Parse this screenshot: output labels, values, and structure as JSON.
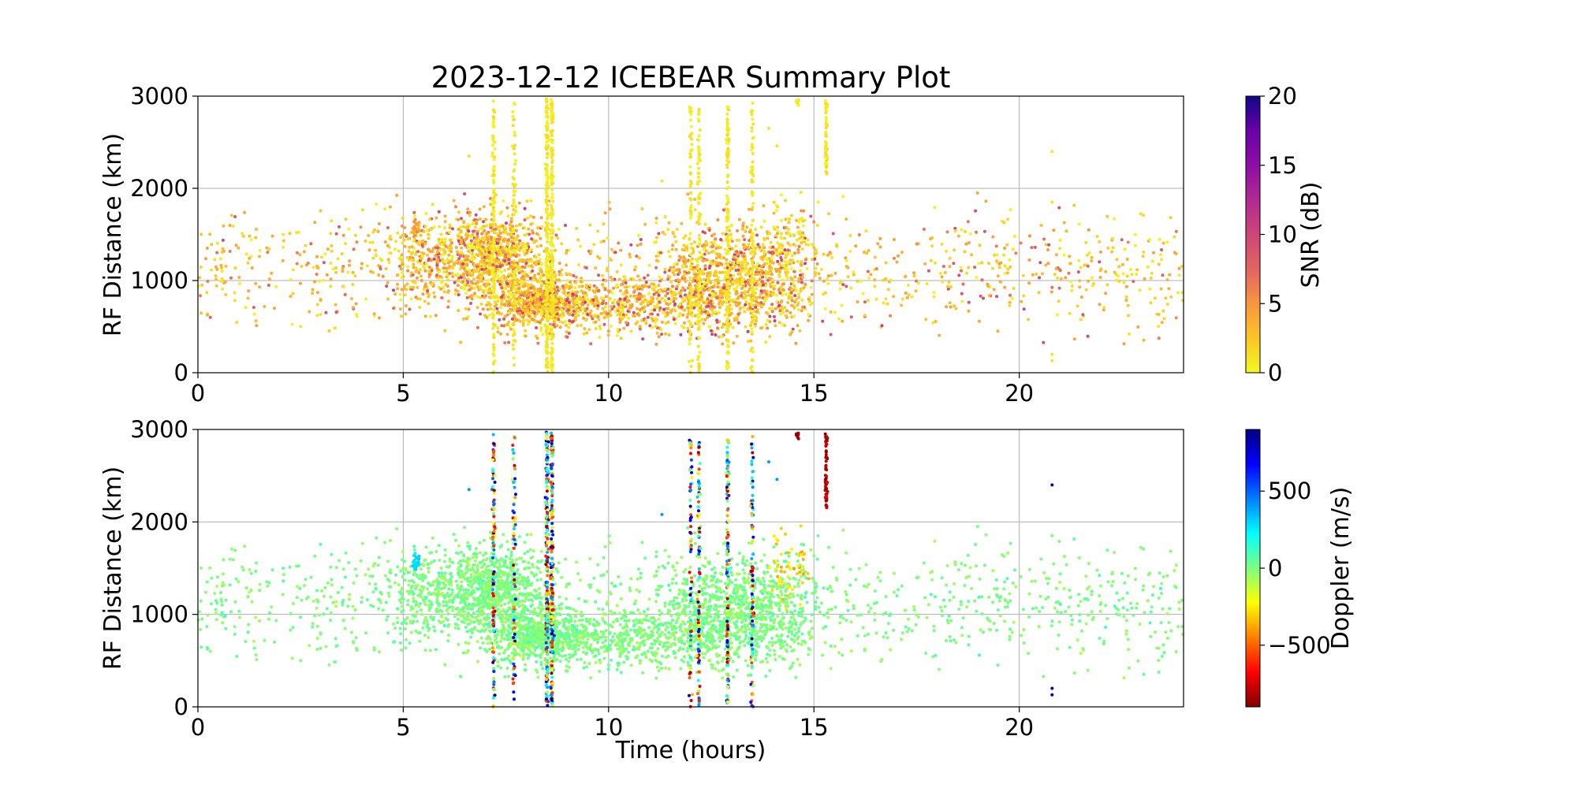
{
  "figure": {
    "title": "2023-12-12 ICEBEAR Summary Plot"
  },
  "chart_data": [
    {
      "type": "scatter",
      "name": "snr-panel",
      "xlabel": "",
      "ylabel": "RF Distance (km)",
      "xlim": [
        0,
        24
      ],
      "ylim": [
        0,
        3000
      ],
      "xticks": [
        "0",
        "5",
        "10",
        "15",
        "20"
      ],
      "yticks": [
        "0",
        "1000",
        "2000",
        "3000"
      ],
      "grid": true,
      "color_variable": "SNR",
      "colorbar": {
        "label": "SNR (dB)",
        "colormap": "plasma_r",
        "range": [
          0,
          20
        ],
        "ticks": [
          "0",
          "5",
          "10",
          "15",
          "20"
        ]
      },
      "cluster_summary": {
        "diffuse_background": {
          "x_range": [
            0,
            24
          ],
          "y_range": [
            300,
            1950
          ],
          "snr_typical": [
            0,
            6
          ]
        },
        "dense_regions": [
          {
            "x_center": 7.3,
            "y_center": 1250,
            "note": "dense cluster"
          },
          {
            "x_center": 8.3,
            "y_center": 800,
            "note": "dense cluster"
          },
          {
            "x_center": 12.8,
            "y_center": 1000,
            "note": "dense cluster"
          }
        ],
        "vertical_streaks_hours": [
          7.2,
          7.7,
          8.5,
          8.6,
          12.0,
          12.2,
          12.9,
          13.5,
          14.6,
          15.3
        ],
        "isolated_points": [
          {
            "x": 20.8,
            "y": 2400
          },
          {
            "x": 20.8,
            "y": 200
          }
        ]
      }
    },
    {
      "type": "scatter",
      "name": "doppler-panel",
      "xlabel": "Time (hours)",
      "ylabel": "RF Distance (km)",
      "xlim": [
        0,
        24
      ],
      "ylim": [
        0,
        3000
      ],
      "xticks": [
        "0",
        "5",
        "10",
        "15",
        "20"
      ],
      "yticks": [
        "0",
        "1000",
        "2000",
        "3000"
      ],
      "grid": true,
      "color_variable": "Doppler",
      "colorbar": {
        "label": "Doppler (m/s)",
        "colormap": "jet_r",
        "range": [
          -900,
          900
        ],
        "ticks": [
          "500",
          "0",
          "−500"
        ],
        "tick_values": [
          500,
          0,
          -500
        ]
      },
      "cluster_summary": {
        "diffuse_background_doppler": 0,
        "streak_doppler": "mixed -900 to 900",
        "cyan_patch": {
          "x": 5.3,
          "y": 1580,
          "doppler": 300
        },
        "yellow_patch": {
          "x": 14.4,
          "y": 1500,
          "doppler": -300
        },
        "red_streak": {
          "x": 15.3,
          "y_range": [
            2150,
            2600
          ],
          "doppler": -800
        }
      }
    }
  ]
}
